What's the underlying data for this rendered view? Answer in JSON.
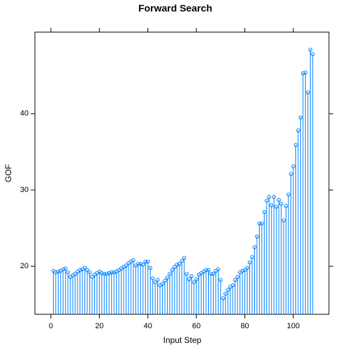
{
  "chart_data": {
    "type": "needle",
    "title": "Forward Search",
    "x_label": "Input Step",
    "y_label": "GOF",
    "x": [
      1,
      2,
      3,
      4,
      5,
      6,
      7,
      8,
      9,
      10,
      11,
      12,
      13,
      14,
      15,
      16,
      17,
      18,
      19,
      20,
      21,
      22,
      23,
      24,
      25,
      26,
      27,
      28,
      29,
      30,
      31,
      32,
      33,
      34,
      35,
      36,
      37,
      38,
      39,
      40,
      41,
      42,
      43,
      44,
      45,
      46,
      47,
      48,
      49,
      50,
      51,
      52,
      53,
      54,
      55,
      56,
      57,
      58,
      59,
      60,
      61,
      62,
      63,
      64,
      65,
      66,
      67,
      68,
      69,
      70,
      71,
      72,
      73,
      74,
      75,
      76,
      77,
      78,
      79,
      80,
      81,
      82,
      83,
      84,
      85,
      86,
      87,
      88,
      89,
      90,
      91,
      92,
      93,
      94,
      95,
      96,
      97,
      98,
      99,
      100,
      101,
      102,
      103,
      104,
      105,
      106,
      107,
      108
    ],
    "values": [
      19.4,
      19.2,
      19.3,
      19.4,
      19.6,
      19.7,
      19.2,
      18.6,
      18.8,
      19.0,
      19.3,
      19.5,
      19.6,
      19.8,
      19.5,
      19.2,
      18.6,
      18.9,
      19.1,
      19.3,
      19.1,
      19.0,
      19.0,
      19.1,
      19.2,
      19.2,
      19.3,
      19.5,
      19.7,
      19.9,
      20.1,
      20.4,
      20.6,
      20.8,
      20.1,
      20.3,
      20.3,
      20.2,
      20.6,
      20.6,
      19.8,
      18.4,
      17.9,
      18.2,
      17.5,
      17.7,
      18.1,
      18.5,
      19.0,
      19.5,
      19.9,
      20.2,
      20.3,
      20.7,
      21.1,
      19.0,
      18.3,
      18.7,
      17.9,
      18.3,
      18.9,
      19.1,
      19.3,
      19.5,
      19.5,
      19.0,
      19.0,
      19.4,
      19.6,
      18.2,
      15.8,
      16.4,
      16.9,
      17.3,
      17.5,
      18.2,
      18.6,
      19.2,
      19.4,
      19.5,
      19.8,
      20.5,
      21.2,
      22.5,
      23.9,
      25.6,
      25.6,
      27.1,
      28.6,
      29.1,
      28.0,
      29.1,
      27.8,
      28.7,
      28.2,
      26.0,
      27.9,
      29.4,
      32.1,
      33.1,
      35.9,
      37.8,
      39.5,
      45.3,
      45.4,
      42.8,
      48.4,
      47.8
    ],
    "color": "#0080ff",
    "xlim": [
      -6.6,
      114.7
    ],
    "xticks": [
      0,
      20,
      40,
      60,
      80,
      100
    ],
    "ylim": [
      13.7,
      50.7
    ],
    "yticks": [
      20,
      30,
      40
    ]
  }
}
